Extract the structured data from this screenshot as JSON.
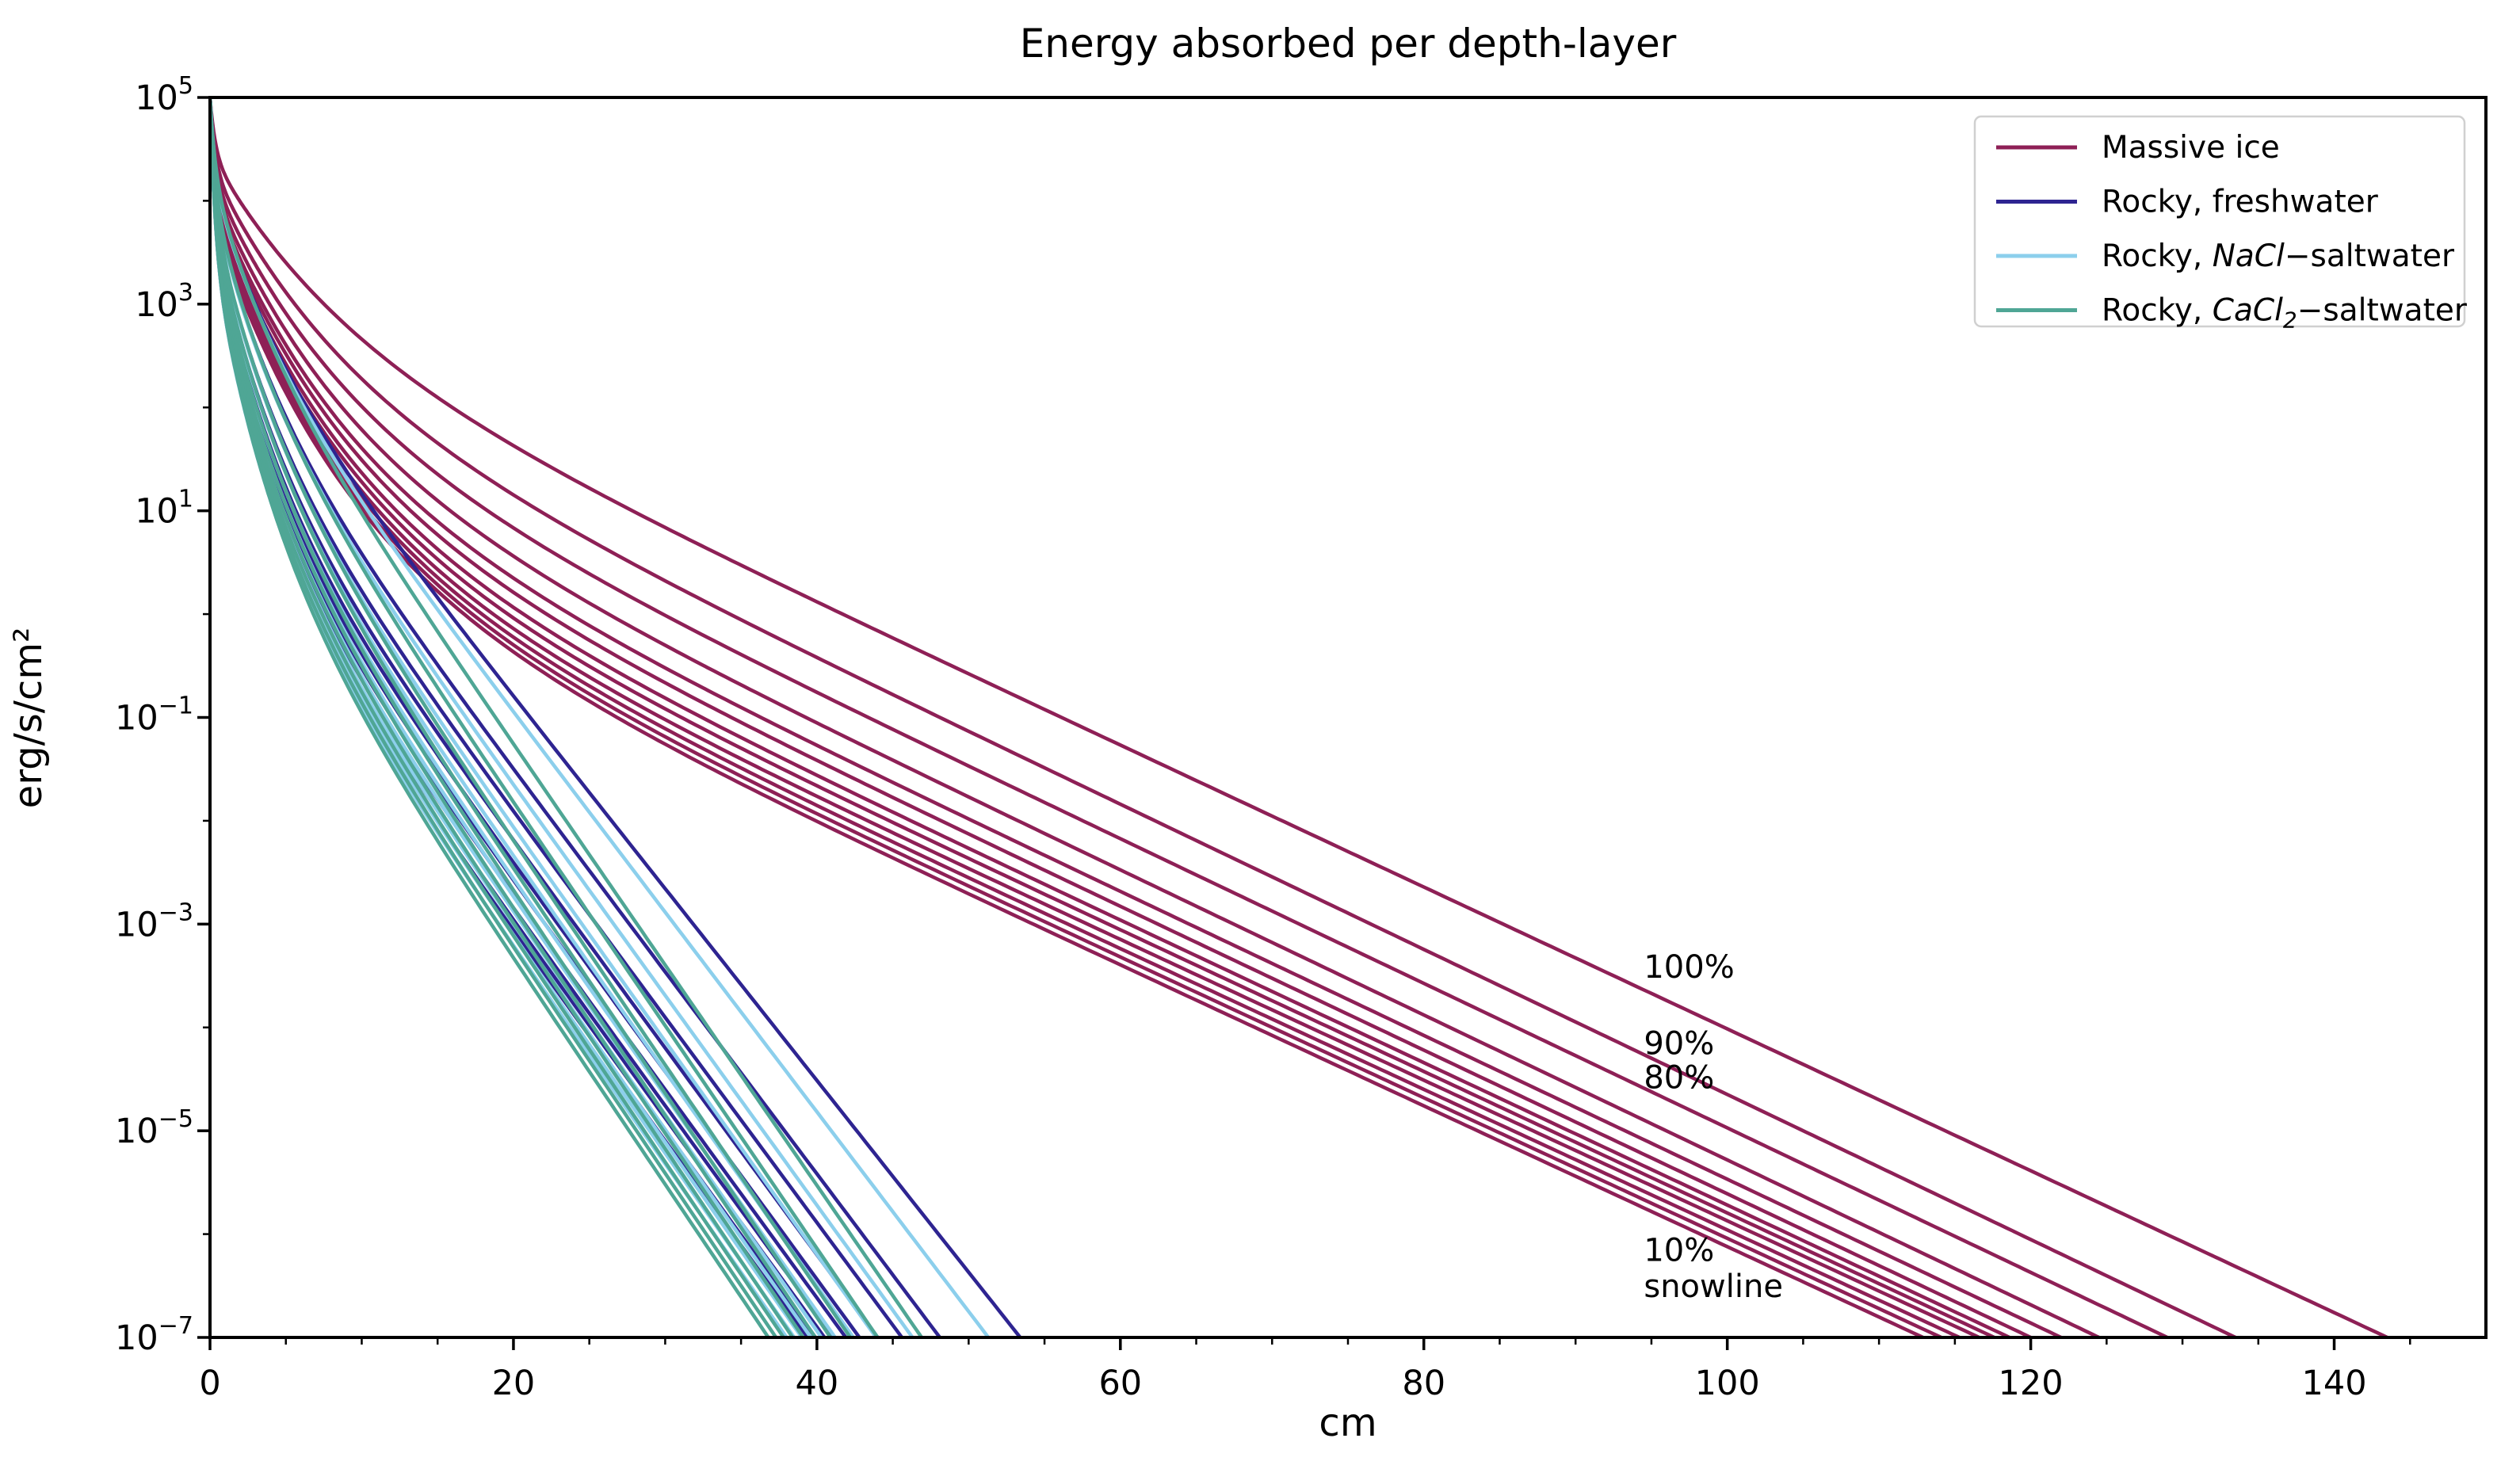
{
  "chart_data": {
    "type": "line",
    "title": "Energy absorbed per depth-layer",
    "xlabel": "cm",
    "ylabel": "erg/s/cm²",
    "grid": false,
    "background": "#ffffff",
    "x_axis": {
      "min": 0,
      "max": 150,
      "major_ticks": [
        0,
        20,
        40,
        60,
        80,
        100,
        120,
        140
      ],
      "minor_tick_step": 5
    },
    "y_axis": {
      "scale": "log",
      "min_exp": -7,
      "max_exp": 5,
      "major_tick_exps": [
        5,
        3,
        1,
        -1,
        -3,
        -5,
        -7
      ],
      "minor_tick_exps": [
        4,
        2,
        0,
        -2,
        -4,
        -6
      ]
    },
    "legend": {
      "position": "upper-right",
      "border_color": "#d0d0d0",
      "fill": "#ffffff",
      "entries": [
        {
          "label": "Massive ice",
          "color": "#8E2056",
          "parts": [
            {
              "t": "Massive ice"
            }
          ]
        },
        {
          "label": "Rocky, freshwater",
          "color": "#2E2491",
          "parts": [
            {
              "t": "Rocky, freshwater"
            }
          ]
        },
        {
          "label": "Rocky, NaCl−saltwater",
          "color": "#8CCFEC",
          "parts": [
            {
              "t": "Rocky, "
            },
            {
              "t": "NaCl",
              "italic": true
            },
            {
              "t": "−saltwater"
            }
          ]
        },
        {
          "label": "Rocky, CaCl2−saltwater",
          "color": "#4FA695",
          "parts": [
            {
              "t": "Rocky, "
            },
            {
              "t": "CaCl",
              "italic": true
            },
            {
              "t": "2",
              "italic": true,
              "sub": true
            },
            {
              "t": "−saltwater"
            }
          ]
        }
      ]
    },
    "model": {
      "description": "Each curve: log10(y) = a − s·x + (5−a)·(ff·exp(−x/wf) + (1−ff)·exp(−x/ws)), with s = (a+7)/x_end so the curve starts at 1e5 erg/s/cm² at depth 0 and reaches 1e-7 at depth x_end (cm)."
    },
    "series": [
      {
        "name": "Massive ice",
        "color": "#8E2056",
        "knee": {
          "ff": 0.25,
          "wf": 0.35,
          "ws": 8.5
        },
        "lines": [
          {
            "a": 2.85,
            "x_end": 143.5
          },
          {
            "a": 2.37,
            "x_end": 133.5
          },
          {
            "a": 2.02,
            "x_end": 129.0
          },
          {
            "a": 1.73,
            "x_end": 124.5
          },
          {
            "a": 1.49,
            "x_end": 122.0
          },
          {
            "a": 1.34,
            "x_end": 120.0
          },
          {
            "a": 1.17,
            "x_end": 118.6
          },
          {
            "a": 1.05,
            "x_end": 117.6
          },
          {
            "a": 0.93,
            "x_end": 116.6
          },
          {
            "a": 0.84,
            "x_end": 115.3
          },
          {
            "a": 0.76,
            "x_end": 114.1
          },
          {
            "a": 0.69,
            "x_end": 112.9
          }
        ]
      },
      {
        "name": "Rocky, freshwater",
        "color": "#2E2491",
        "knee": {
          "ff": 0.35,
          "wf": 0.35,
          "ws": 4.0
        },
        "lines": [
          {
            "a": 2.91,
            "x_end": 53.4
          },
          {
            "a": 2.4,
            "x_end": 48.1
          },
          {
            "a": 2.05,
            "x_end": 45.6
          },
          {
            "a": 1.8,
            "x_end": 44.0
          },
          {
            "a": 1.6,
            "x_end": 42.8
          },
          {
            "a": 1.44,
            "x_end": 41.9
          },
          {
            "a": 1.3,
            "x_end": 41.1
          },
          {
            "a": 1.18,
            "x_end": 40.5
          },
          {
            "a": 1.07,
            "x_end": 39.9
          },
          {
            "a": 0.97,
            "x_end": 39.4
          }
        ]
      },
      {
        "name": "Rocky, NaCl−saltwater",
        "color": "#8CCFEC",
        "knee": {
          "ff": 0.35,
          "wf": 0.35,
          "ws": 4.0
        },
        "lines": [
          {
            "a": 2.91,
            "x_end": 51.3
          },
          {
            "a": 2.4,
            "x_end": 46.3
          },
          {
            "a": 2.05,
            "x_end": 43.9
          },
          {
            "a": 1.8,
            "x_end": 42.4
          },
          {
            "a": 1.6,
            "x_end": 41.2
          },
          {
            "a": 1.44,
            "x_end": 40.3
          },
          {
            "a": 1.3,
            "x_end": 39.6
          },
          {
            "a": 1.18,
            "x_end": 39.0
          },
          {
            "a": 1.07,
            "x_end": 38.5
          },
          {
            "a": 0.97,
            "x_end": 38.0
          }
        ]
      },
      {
        "name": "Rocky, CaCl2−saltwater",
        "color": "#4FA695",
        "knee": {
          "ff": 0.35,
          "wf": 0.35,
          "ws": 4.0
        },
        "lines": [
          {
            "a": 3.0,
            "x_end": 46.9
          },
          {
            "a": 2.48,
            "x_end": 44.0
          },
          {
            "a": 2.12,
            "x_end": 42.2
          },
          {
            "a": 1.86,
            "x_end": 40.9
          },
          {
            "a": 1.65,
            "x_end": 39.9
          },
          {
            "a": 1.48,
            "x_end": 39.1
          },
          {
            "a": 1.34,
            "x_end": 38.4
          },
          {
            "a": 1.22,
            "x_end": 37.8
          },
          {
            "a": 1.11,
            "x_end": 37.3
          },
          {
            "a": 1.01,
            "x_end": 36.8
          }
        ]
      }
    ],
    "annotations": [
      {
        "text": "100%",
        "x_cm": 94.5,
        "log10_y": -3.52
      },
      {
        "text": "90%",
        "x_cm": 94.5,
        "log10_y": -4.26
      },
      {
        "text": "80%",
        "x_cm": 94.5,
        "log10_y": -4.59
      },
      {
        "text": "10%",
        "x_cm": 94.5,
        "log10_y": -6.26
      },
      {
        "text": "snowline",
        "x_cm": 94.5,
        "log10_y": -6.61
      }
    ]
  }
}
